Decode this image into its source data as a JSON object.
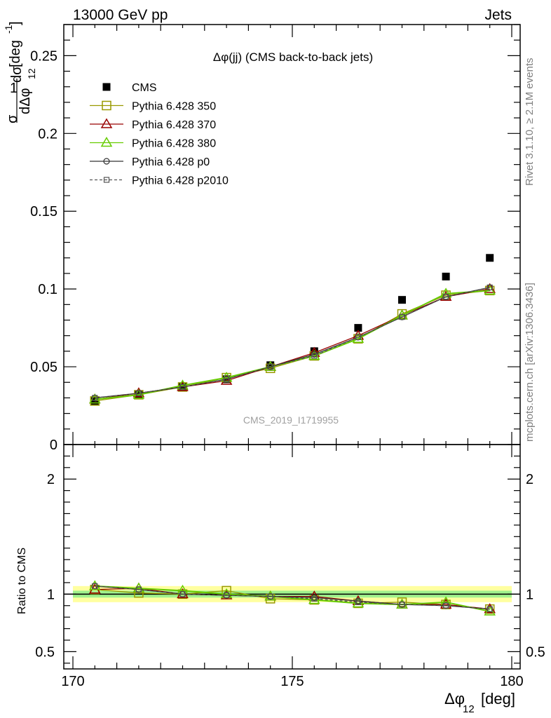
{
  "header": {
    "left": "13000 GeV pp",
    "right": "Jets"
  },
  "side_text": {
    "rivet": "Rivet 3.1.10, ≥ 2.1M events",
    "mcplots": "mcplots.cern.ch [arXiv:1306.3436]"
  },
  "plot_title": "Δφ(jj) (CMS back-to-back jets)",
  "watermark": "CMS_2019_I1719955",
  "y_label": {
    "num": "1",
    "d": "dσ",
    "sigma": "σ",
    "dden": "dΔφ",
    "sub": "12",
    "unit": "[deg",
    "sup": "-1",
    "close": "]"
  },
  "ratio_label": "Ratio to CMS",
  "x_label": {
    "main": "Δφ",
    "sub": "12",
    "unit": "[deg]"
  },
  "chart_data": [
    {
      "type": "scatter",
      "panel": "main",
      "xlim": [
        170,
        180
      ],
      "ylim": [
        0,
        0.27
      ],
      "x_ticks": [
        "170",
        "175",
        "180"
      ],
      "y_ticks": [
        "0",
        "0.05",
        "0.1",
        "0.15",
        "0.2",
        "0.25"
      ],
      "x": [
        170.5,
        171.5,
        172.5,
        173.5,
        174.5,
        175.5,
        176.5,
        177.5,
        178.5,
        179.5
      ],
      "series": [
        {
          "name": "CMS",
          "color": "#000000",
          "marker": "filled-square",
          "values": [
            0.028,
            0.032,
            0.037,
            0.042,
            0.051,
            0.06,
            0.075,
            0.093,
            0.108,
            0.12
          ]
        },
        {
          "name": "Pythia 6.428 350",
          "color": "#999900",
          "marker": "open-square",
          "values": [
            0.028,
            0.032,
            0.037,
            0.043,
            0.049,
            0.057,
            0.068,
            0.084,
            0.096,
            0.099
          ]
        },
        {
          "name": "Pythia 6.428 370",
          "color": "#990000",
          "marker": "open-triangle",
          "values": [
            0.029,
            0.033,
            0.037,
            0.041,
            0.05,
            0.059,
            0.07,
            0.083,
            0.095,
            0.1
          ]
        },
        {
          "name": "Pythia 6.428 380",
          "color": "#66cc00",
          "marker": "open-triangle",
          "values": [
            0.029,
            0.032,
            0.038,
            0.043,
            0.05,
            0.057,
            0.068,
            0.083,
            0.097,
            0.099
          ]
        },
        {
          "name": "Pythia 6.428 p0",
          "color": "#333333",
          "marker": "open-circle",
          "values": [
            0.03,
            0.033,
            0.037,
            0.042,
            0.05,
            0.058,
            0.069,
            0.082,
            0.095,
            0.101
          ]
        },
        {
          "name": "Pythia 6.428 p2010",
          "color": "#555555",
          "marker": "open-square-dashed",
          "values": [
            0.03,
            0.033,
            0.037,
            0.042,
            0.05,
            0.057,
            0.069,
            0.082,
            0.095,
            0.101
          ]
        }
      ],
      "legend_position": "top-left"
    },
    {
      "type": "line",
      "panel": "ratio",
      "xlim": [
        170,
        180
      ],
      "ylim": [
        0.35,
        2.3
      ],
      "x_ticks": [
        "170",
        "175",
        "180"
      ],
      "y_ticks": [
        "0.5",
        "1",
        "2"
      ],
      "reference": 1.0,
      "band_outer": 0.07,
      "band_inner": 0.03,
      "x": [
        170.5,
        171.5,
        172.5,
        173.5,
        174.5,
        175.5,
        176.5,
        177.5,
        178.5,
        179.5
      ],
      "series": [
        {
          "name": "Pythia 6.428 350",
          "color": "#999900",
          "marker": "open-square",
          "values": [
            1.04,
            1.01,
            1.0,
            1.03,
            0.96,
            0.95,
            0.92,
            0.93,
            0.91,
            0.87
          ]
        },
        {
          "name": "Pythia 6.428 370",
          "color": "#990000",
          "marker": "open-triangle",
          "values": [
            1.04,
            1.05,
            1.0,
            0.99,
            0.98,
            0.98,
            0.94,
            0.91,
            0.91,
            0.87
          ]
        },
        {
          "name": "Pythia 6.428 380",
          "color": "#66cc00",
          "marker": "open-triangle",
          "values": [
            1.07,
            1.05,
            1.03,
            1.0,
            0.98,
            0.95,
            0.92,
            0.91,
            0.93,
            0.85
          ]
        },
        {
          "name": "Pythia 6.428 p0",
          "color": "#333333",
          "marker": "open-circle",
          "values": [
            1.07,
            1.04,
            1.0,
            0.99,
            0.98,
            0.97,
            0.94,
            0.91,
            0.9,
            0.87
          ]
        },
        {
          "name": "Pythia 6.428 p2010",
          "color": "#555555",
          "marker": "open-square-dashed",
          "values": [
            1.07,
            1.04,
            1.0,
            0.99,
            0.98,
            0.96,
            0.93,
            0.91,
            0.9,
            0.87
          ]
        }
      ]
    }
  ]
}
